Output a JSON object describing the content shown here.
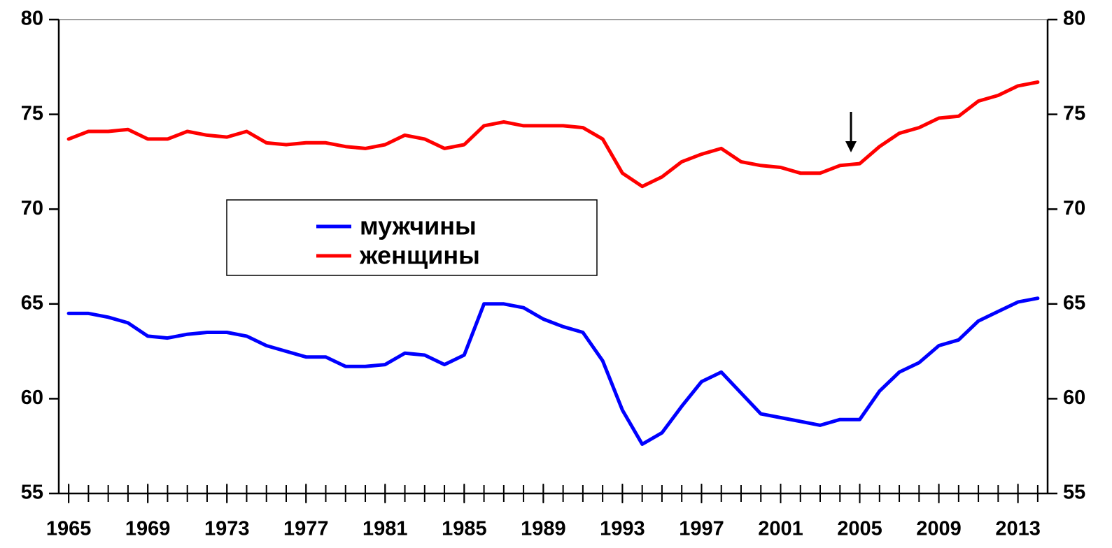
{
  "chart_data": {
    "type": "line",
    "x": [
      1965,
      1966,
      1967,
      1968,
      1969,
      1970,
      1971,
      1972,
      1973,
      1974,
      1975,
      1976,
      1977,
      1978,
      1979,
      1980,
      1981,
      1982,
      1983,
      1984,
      1985,
      1986,
      1987,
      1988,
      1989,
      1990,
      1991,
      1992,
      1993,
      1994,
      1995,
      1996,
      1997,
      1998,
      1999,
      2000,
      2001,
      2002,
      2003,
      2004,
      2005,
      2006,
      2007,
      2008,
      2009,
      2010,
      2011,
      2012,
      2013,
      2014
    ],
    "series": [
      {
        "name": "мужчины",
        "color": "#0000ff",
        "values": [
          64.5,
          64.5,
          64.3,
          64.0,
          63.3,
          63.2,
          63.4,
          63.5,
          63.5,
          63.3,
          62.8,
          62.5,
          62.2,
          62.2,
          61.7,
          61.7,
          61.8,
          62.4,
          62.3,
          61.8,
          62.3,
          65.0,
          65.0,
          64.8,
          64.2,
          63.8,
          63.5,
          62.0,
          59.4,
          57.6,
          58.2,
          59.6,
          60.9,
          61.4,
          60.3,
          59.2,
          59.0,
          58.8,
          58.6,
          58.9,
          58.9,
          60.4,
          61.4,
          61.9,
          62.8,
          63.1,
          64.1,
          64.6,
          65.1,
          65.3
        ]
      },
      {
        "name": "женщины",
        "color": "#ff0000",
        "values": [
          73.7,
          74.1,
          74.1,
          74.2,
          73.7,
          73.7,
          74.1,
          73.9,
          73.8,
          74.1,
          73.5,
          73.4,
          73.5,
          73.5,
          73.3,
          73.2,
          73.4,
          73.9,
          73.7,
          73.2,
          73.4,
          74.4,
          74.6,
          74.4,
          74.4,
          74.4,
          74.3,
          73.7,
          71.9,
          71.2,
          71.7,
          72.5,
          72.9,
          73.2,
          72.5,
          72.3,
          72.2,
          71.9,
          71.9,
          72.3,
          72.4,
          73.3,
          74.0,
          74.3,
          74.8,
          74.9,
          75.7,
          76.0,
          76.5,
          76.7
        ]
      }
    ],
    "xlim": [
      1964.5,
      2014.5
    ],
    "xticks": [
      1965,
      1969,
      1973,
      1977,
      1981,
      1985,
      1989,
      1993,
      1997,
      2001,
      2005,
      2009,
      2013
    ],
    "ylim": [
      55,
      80
    ],
    "yticks": [
      55,
      60,
      65,
      70,
      75,
      80
    ],
    "y2lim": [
      55,
      80
    ],
    "y2ticks": [
      55,
      60,
      65,
      70,
      75,
      80
    ],
    "grid": false,
    "legend": "center-left"
  }
}
